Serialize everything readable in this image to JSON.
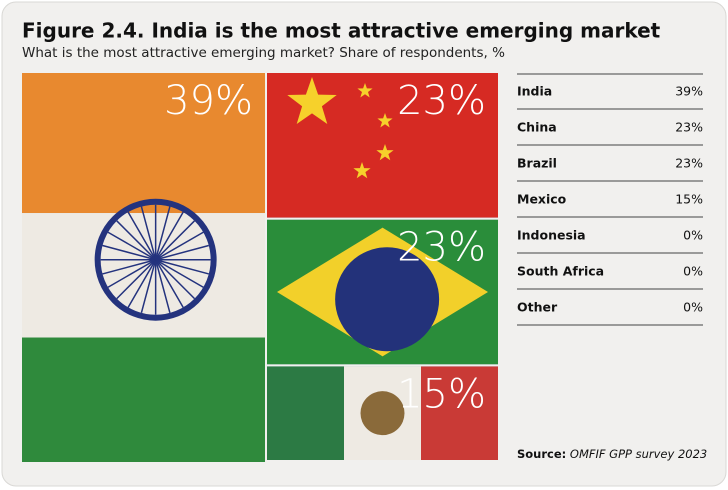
{
  "chart_data": {
    "type": "treemap",
    "title": "Figure 2.4. India is the most attractive emerging market",
    "subtitle": "What is the most attractive emerging market? Share of respondents, %",
    "categories": [
      "India",
      "China",
      "Brazil",
      "Mexico",
      "Indonesia",
      "South Africa",
      "Other"
    ],
    "values": [
      39,
      23,
      23,
      15,
      0,
      0,
      0
    ],
    "value_labels": [
      "39%",
      "23%",
      "23%",
      "15%",
      "0%",
      "0%",
      "0%"
    ],
    "source_label": "Source:",
    "source": "OMFIF GPP survey 2023"
  }
}
